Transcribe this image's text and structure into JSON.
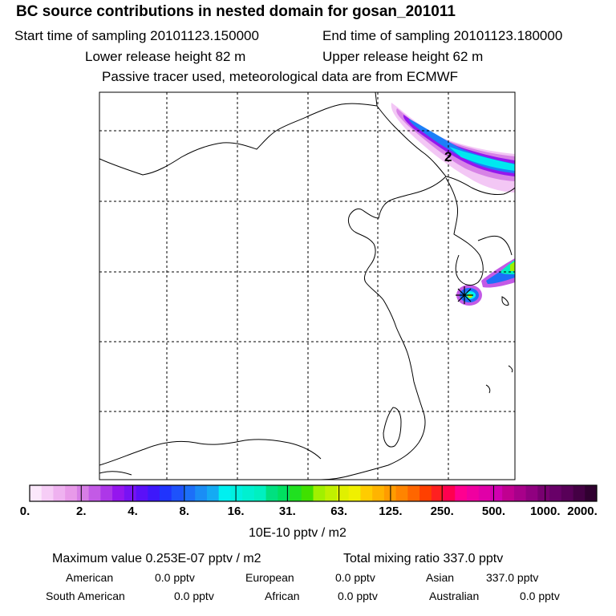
{
  "header": {
    "title": "BC  source contributions in nested domain for gosan_201011",
    "start_time": "Start time of sampling 20101123.150000",
    "end_time": "End time of sampling 20101123.180000",
    "lower_release": "Lower release height   82 m",
    "upper_release": "Upper release height   62 m",
    "tracer_note": "Passive tracer used, meteorological data are from ECMWF"
  },
  "map": {
    "contour_label": "2",
    "receptor_marker": "gosan-receptor",
    "colors": {
      "frame": "#000000",
      "grid": "#000000",
      "coastline": "#000000"
    }
  },
  "colorbar": {
    "tick_labels": [
      "0.",
      "2.",
      "4.",
      "8.",
      "16.",
      "31.",
      "63.",
      "125.",
      "250.",
      "500.",
      "1000.",
      "2000."
    ],
    "colors": [
      "#fbe8fb",
      "#f6cdf6",
      "#efb2f0",
      "#e89ae9",
      "#d77ee6",
      "#c35ae6",
      "#ad37e8",
      "#9516ee",
      "#7812f4",
      "#5a10f8",
      "#3d18fb",
      "#2034fd",
      "#1e52fb",
      "#1c6ff8",
      "#1a8df5",
      "#15aaf3",
      "#00f0f0",
      "#00f0e0",
      "#00f0d0",
      "#00f0c0",
      "#00e080",
      "#00e060",
      "#20e020",
      "#40e000",
      "#a0f000",
      "#c0f000",
      "#e0f000",
      "#f0f000",
      "#ffcc00",
      "#ffb400",
      "#ff9c00",
      "#ff8400",
      "#ff6600",
      "#ff4000",
      "#ff2020",
      "#ff0050",
      "#ff0090",
      "#f000a0",
      "#e000a8",
      "#d000b0",
      "#c00090",
      "#a8008a",
      "#900080",
      "#780070",
      "#680068",
      "#580058",
      "#440044",
      "#300030"
    ],
    "units": "10E-10 pptv / m2"
  },
  "footer": {
    "max_value": "Maximum value  0.253E-07 pptv / m2",
    "total_mixing": "Total mixing ratio      337.0 pptv",
    "american_label": "American",
    "american_value": "0.0 pptv",
    "european_label": "European",
    "european_value": "0.0 pptv",
    "asian_label": "Asian",
    "asian_value": "337.0 pptv",
    "south_american_label": "South American",
    "south_american_value": "0.0 pptv",
    "african_label": "African",
    "african_value": "0.0 pptv",
    "australian_label": "Australian",
    "australian_value": "0.0 pptv"
  }
}
